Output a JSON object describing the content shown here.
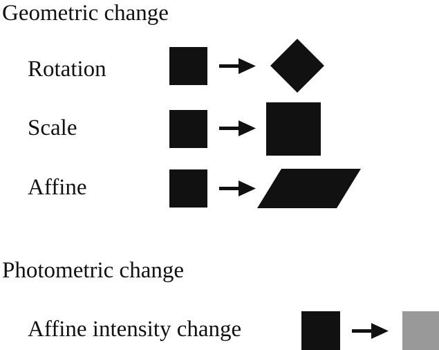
{
  "geometric": {
    "heading": "Geometric change",
    "rows": [
      {
        "label": "Rotation"
      },
      {
        "label": "Scale"
      },
      {
        "label": "Affine"
      }
    ]
  },
  "photometric": {
    "heading": "Photometric change",
    "rows": [
      {
        "label": "Affine intensity change"
      }
    ]
  },
  "colors": {
    "shape": "#111111",
    "arrow": "#111111",
    "intensity_target": "#999999"
  }
}
